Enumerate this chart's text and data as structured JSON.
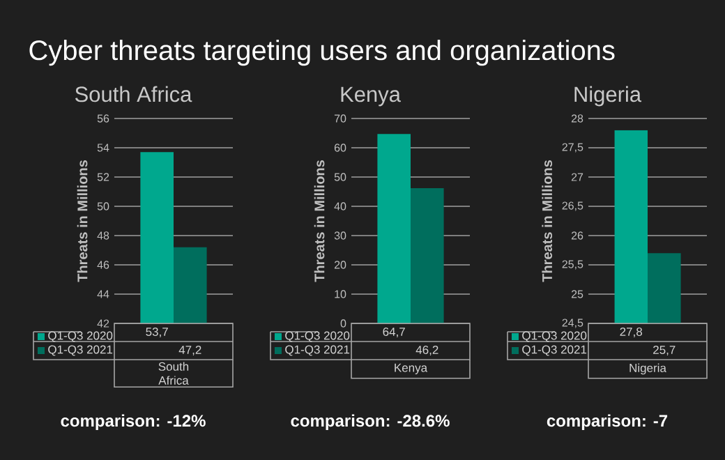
{
  "chart_data": [
    {
      "type": "bar",
      "title": "Cyber threats targeting users and organizations",
      "subtitle": "South Africa",
      "ylabel": "Threats in Millions",
      "categories": [
        "South Africa"
      ],
      "series": [
        {
          "name": "Q1-Q3 2020",
          "color": "#00a88e",
          "values": [
            53.7
          ],
          "value_labels": [
            "53,7"
          ]
        },
        {
          "name": "Q1-Q3 2021",
          "color": "#006e5d",
          "values": [
            47.2
          ],
          "value_labels": [
            "47,2"
          ]
        }
      ],
      "ylim": [
        42,
        56
      ],
      "yticks": [
        42,
        44,
        46,
        48,
        50,
        52,
        54,
        56
      ],
      "grid": "y",
      "legend": "bottom",
      "annotations": [
        "comparison: -12%"
      ]
    },
    {
      "type": "bar",
      "subtitle": "Kenya",
      "ylabel": "Threats in Millions",
      "categories": [
        "Kenya"
      ],
      "series": [
        {
          "name": "Q1-Q3 2020",
          "color": "#00a88e",
          "values": [
            64.7
          ],
          "value_labels": [
            "64,7"
          ]
        },
        {
          "name": "Q1-Q3 2021",
          "color": "#006e5d",
          "values": [
            46.2
          ],
          "value_labels": [
            "46,2"
          ]
        }
      ],
      "ylim": [
        0,
        70
      ],
      "yticks": [
        0,
        10,
        20,
        30,
        40,
        50,
        60,
        70
      ],
      "grid": "y",
      "legend": "bottom",
      "annotations": [
        "comparison: -28.6%"
      ]
    },
    {
      "type": "bar",
      "subtitle": "Nigeria",
      "ylabel": "Threats in Millions",
      "categories": [
        "Nigeria"
      ],
      "series": [
        {
          "name": "Q1-Q3 2020",
          "color": "#00a88e",
          "values": [
            27.8
          ],
          "value_labels": [
            "27,8"
          ]
        },
        {
          "name": "Q1-Q3 2021",
          "color": "#006e5d",
          "values": [
            25.7
          ],
          "value_labels": [
            "25,7"
          ]
        }
      ],
      "ylim": [
        24.5,
        28
      ],
      "yticks": [
        {
          "value": 24.5,
          "label": "24,5"
        },
        25,
        {
          "value": 25.5,
          "label": "25,5"
        },
        26,
        {
          "value": 26.5,
          "label": "26,5"
        },
        27,
        {
          "value": 27.5,
          "label": "27,5"
        },
        28
      ],
      "grid": "y",
      "legend": "bottom",
      "annotations": [
        "comparison: -7"
      ]
    }
  ]
}
